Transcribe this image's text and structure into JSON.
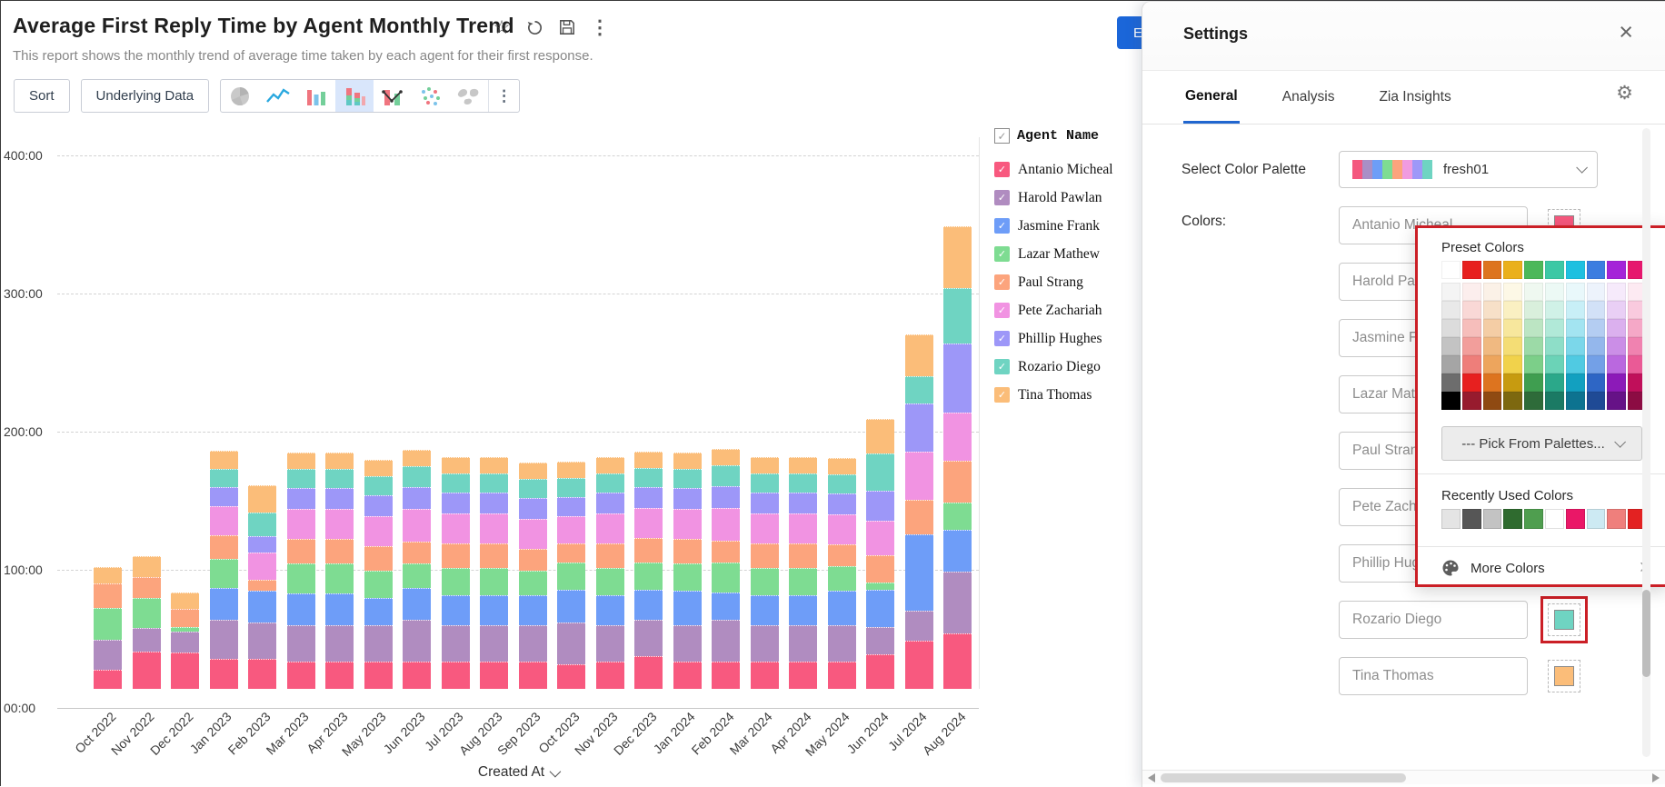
{
  "report": {
    "title": "Average First Reply Time by Agent Monthly Trend",
    "subtitle": "This report shows the monthly trend of average time taken by each agent for their first response.",
    "edit_button_label": "E"
  },
  "toolbar": {
    "sort_label": "Sort",
    "underlying_data_label": "Underlying Data",
    "chart_types": [
      "pie",
      "line",
      "bar",
      "stacked-bar",
      "bar-line-combo",
      "scatter",
      "map"
    ],
    "active_chart_type": "stacked-bar"
  },
  "chart_data": {
    "type": "bar",
    "stacked": true,
    "title": "Average First Reply Time by Agent Monthly Trend",
    "xlabel": "Created At",
    "ylabel": "",
    "ylim": [
      0,
      400
    ],
    "yticks": [
      "00:00",
      "100:00",
      "200:00",
      "300:00",
      "400:00"
    ],
    "grid": "horizontal-dashed",
    "legend_position": "right",
    "legend_title": "Agent Name",
    "categories": [
      "Oct 2022",
      "Nov 2022",
      "Dec 2022",
      "Jan 2023",
      "Feb 2023",
      "Mar 2023",
      "Apr 2023",
      "May 2023",
      "Jun 2023",
      "Jul 2023",
      "Aug 2023",
      "Sep 2023",
      "Oct 2023",
      "Nov 2023",
      "Dec 2023",
      "Jan 2024",
      "Feb 2024",
      "Mar 2024",
      "Apr 2024",
      "May 2024",
      "Jun 2024",
      "Jul 2024",
      "Aug 2024"
    ],
    "series": [
      {
        "name": "Antanio Micheal",
        "color": "#f8597f",
        "values": [
          14,
          27,
          26,
          22,
          22,
          20,
          20,
          20,
          20,
          20,
          20,
          20,
          18,
          20,
          24,
          20,
          20,
          20,
          20,
          20,
          25,
          35,
          40
        ]
      },
      {
        "name": "Harold Pawlan",
        "color": "#b08cc0",
        "values": [
          22,
          17,
          15,
          28,
          26,
          26,
          26,
          26,
          30,
          26,
          26,
          26,
          30,
          26,
          26,
          26,
          30,
          26,
          26,
          26,
          20,
          22,
          45
        ]
      },
      {
        "name": "Jasmine Frank",
        "color": "#6e9df8",
        "values": [
          0,
          0,
          0,
          23,
          23,
          23,
          23,
          20,
          23,
          22,
          22,
          22,
          24,
          22,
          22,
          25,
          20,
          22,
          22,
          25,
          27,
          55,
          30
        ]
      },
      {
        "name": "Lazar Mathew",
        "color": "#7edc92",
        "values": [
          23,
          22,
          3,
          21,
          0,
          22,
          22,
          20,
          18,
          20,
          20,
          18,
          20,
          20,
          20,
          20,
          22,
          20,
          20,
          18,
          5,
          0,
          20
        ]
      },
      {
        "name": "Paul Strang",
        "color": "#fca47d",
        "values": [
          18,
          15,
          13,
          17,
          8,
          18,
          18,
          18,
          16,
          18,
          18,
          16,
          14,
          18,
          18,
          18,
          16,
          18,
          18,
          16,
          20,
          25,
          30
        ]
      },
      {
        "name": "Pete Zachariah",
        "color": "#f193e2",
        "values": [
          0,
          0,
          0,
          21,
          20,
          22,
          22,
          22,
          24,
          22,
          22,
          22,
          20,
          22,
          22,
          22,
          24,
          22,
          22,
          22,
          25,
          35,
          35
        ]
      },
      {
        "name": "Phillip Hughes",
        "color": "#9d97f8",
        "values": [
          0,
          0,
          0,
          14,
          12,
          15,
          15,
          15,
          16,
          15,
          15,
          15,
          14,
          15,
          15,
          15,
          16,
          15,
          15,
          15,
          22,
          35,
          50
        ]
      },
      {
        "name": "Rozario Diego",
        "color": "#6fd4c2",
        "values": [
          0,
          0,
          0,
          13,
          17,
          14,
          14,
          14,
          15,
          14,
          14,
          14,
          14,
          14,
          14,
          14,
          15,
          14,
          14,
          14,
          27,
          20,
          40
        ]
      },
      {
        "name": "Tina Thomas",
        "color": "#fbbd79",
        "values": [
          12,
          15,
          12,
          13,
          20,
          12,
          12,
          12,
          12,
          12,
          12,
          12,
          12,
          12,
          12,
          12,
          12,
          12,
          12,
          12,
          25,
          30,
          45
        ]
      }
    ]
  },
  "settings": {
    "title": "Settings",
    "tabs": [
      "General",
      "Analysis",
      "Zia Insights"
    ],
    "active_tab": "General",
    "select_palette_label": "Select Color Palette",
    "palette_name": "fresh01",
    "palette_preview_colors": [
      "#f4587f",
      "#a98fc6",
      "#6d9ef7",
      "#7edc92",
      "#fca47d",
      "#f09be0",
      "#9e98f8",
      "#6fd4c2"
    ],
    "colors_label": "Colors:",
    "agents": [
      {
        "name": "Antanio Micheal",
        "color": "#f8597f",
        "highlighted": false
      },
      {
        "name": "Harold Pawlan",
        "color": "#b08cc0",
        "highlighted": false
      },
      {
        "name": "Jasmine Frank",
        "color": "#6e9df8",
        "highlighted": false
      },
      {
        "name": "Lazar Mathew",
        "color": "#7edc92",
        "highlighted": false
      },
      {
        "name": "Paul Strang",
        "color": "#fca47d",
        "highlighted": false
      },
      {
        "name": "Pete Zachariah",
        "color": "#f193e2",
        "highlighted": false
      },
      {
        "name": "Phillip Hughes",
        "color": "#9d97f8",
        "highlighted": false
      },
      {
        "name": "Rozario Diego",
        "color": "#6fd4c2",
        "highlighted": true
      },
      {
        "name": "Tina Thomas",
        "color": "#fbbd79",
        "highlighted": false
      }
    ],
    "preset_popup": {
      "title": "Preset Colors",
      "annotation_color": "#cb1f26",
      "grid": [
        [
          "#ffffff",
          "#e7201f",
          "#dd741f",
          "#eab01c",
          "#4cb85a",
          "#3cc8a5",
          "#1dc0e0",
          "#3c7de0",
          "#a524d8",
          "#e6186e"
        ],
        [
          "#f4f4f4",
          "#fceeed",
          "#fbf1e7",
          "#fdf8e6",
          "#eff8f0",
          "#ecf9f5",
          "#e9f8fb",
          "#edf3fc",
          "#f6eafb",
          "#fdeaf2"
        ],
        [
          "#e9e9e9",
          "#f9d8d6",
          "#f7e0c8",
          "#faf0c2",
          "#d9efdc",
          "#d0f1e7",
          "#c8eff7",
          "#d2e1f7",
          "#e9cff5",
          "#f9cade"
        ],
        [
          "#dcdcdc",
          "#f6bebb",
          "#f4cda5",
          "#f7e79d",
          "#bce5c3",
          "#b1e9d8",
          "#a3e4f1",
          "#b4cdf2",
          "#dbb0ee",
          "#f5a8c7"
        ],
        [
          "#c3c3c3",
          "#f29e9b",
          "#f0b981",
          "#f4dd75",
          "#9cdaa7",
          "#8edec8",
          "#7bd7ea",
          "#94b7ec",
          "#cb8ee7",
          "#f082b0"
        ],
        [
          "#a5a5a5",
          "#ee7e7a",
          "#eda55d",
          "#f1d24b",
          "#7ccf89",
          "#6bd3b7",
          "#50cae2",
          "#73a0e7",
          "#ba68df",
          "#ea5a96"
        ],
        [
          "#6d6d6d",
          "#e7201f",
          "#dd741f",
          "#c79b10",
          "#3f9e50",
          "#2ba88a",
          "#12a0c0",
          "#2e66c5",
          "#8c1ab8",
          "#c00f5a"
        ],
        [
          "#000000",
          "#971b2e",
          "#8f4a12",
          "#7d680f",
          "#2e6b39",
          "#1b7a64",
          "#0d7390",
          "#1f4a95",
          "#661287",
          "#8c0c43"
        ]
      ],
      "pick_from_palettes_label": "--- Pick From Palettes...",
      "recent_label": "Recently Used Colors",
      "recent_colors": [
        "#e4e4e4",
        "#565656",
        "#c3c3c3",
        "#2f6b2f",
        "#4f9e4f",
        "#ffffff",
        "#ea1767",
        "#cdeaf3",
        "#ef7f7c",
        "#e32222"
      ],
      "more_colors_label": "More Colors"
    }
  }
}
